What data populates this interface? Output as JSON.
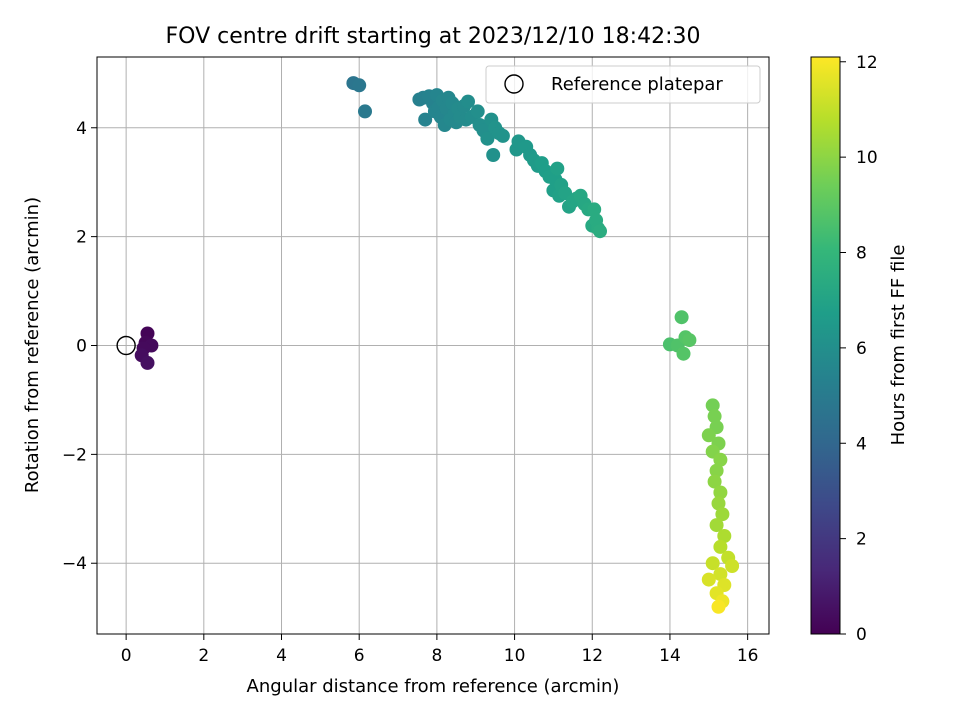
{
  "chart_data": {
    "type": "scatter",
    "title": "FOV centre drift starting at 2023/12/10 18:42:30",
    "xlabel": "Angular distance from reference (arcmin)",
    "ylabel": "Rotation from reference (arcmin)",
    "xlim": [
      -0.75,
      16.55
    ],
    "ylim": [
      -5.3,
      5.3
    ],
    "xticks": [
      0,
      2,
      4,
      6,
      8,
      10,
      12,
      14,
      16
    ],
    "yticks": [
      -4,
      -2,
      0,
      2,
      4
    ],
    "grid": true,
    "legend": {
      "placement": "top-right",
      "entries": [
        "Reference platepar"
      ]
    },
    "reference_point": {
      "x": 0,
      "y": 0,
      "label": "Reference platepar"
    },
    "colorbar": {
      "label": "Hours from first FF file",
      "range": [
        0,
        12.1
      ],
      "ticks": [
        0,
        2,
        4,
        6,
        8,
        10,
        12
      ],
      "colormap": [
        "#440154",
        "#482878",
        "#3e4989",
        "#31688e",
        "#26828e",
        "#1f9e89",
        "#35b779",
        "#6ece58",
        "#b5de2b",
        "#fde725"
      ]
    },
    "series": [
      {
        "points": [
          {
            "x": 0.55,
            "y": 0.22,
            "h": 0.1
          },
          {
            "x": 0.5,
            "y": 0.05,
            "h": 0.2
          },
          {
            "x": 0.65,
            "y": 0.0,
            "h": 0.3
          },
          {
            "x": 0.45,
            "y": -0.05,
            "h": 0.3
          },
          {
            "x": 0.4,
            "y": -0.18,
            "h": 0.4
          },
          {
            "x": 0.55,
            "y": -0.32,
            "h": 0.5
          },
          {
            "x": 5.85,
            "y": 4.82,
            "h": 4.7
          },
          {
            "x": 6.0,
            "y": 4.78,
            "h": 4.8
          },
          {
            "x": 6.15,
            "y": 4.3,
            "h": 4.9
          },
          {
            "x": 7.55,
            "y": 4.52,
            "h": 5.3
          },
          {
            "x": 7.65,
            "y": 4.55,
            "h": 5.3
          },
          {
            "x": 7.7,
            "y": 4.15,
            "h": 5.4
          },
          {
            "x": 7.8,
            "y": 4.58,
            "h": 5.4
          },
          {
            "x": 7.9,
            "y": 4.45,
            "h": 5.4
          },
          {
            "x": 7.95,
            "y": 4.3,
            "h": 5.5
          },
          {
            "x": 8.0,
            "y": 4.6,
            "h": 5.5
          },
          {
            "x": 8.05,
            "y": 4.38,
            "h": 5.5
          },
          {
            "x": 8.1,
            "y": 4.2,
            "h": 5.5
          },
          {
            "x": 8.15,
            "y": 4.5,
            "h": 5.6
          },
          {
            "x": 8.2,
            "y": 4.05,
            "h": 5.6
          },
          {
            "x": 8.25,
            "y": 4.35,
            "h": 5.6
          },
          {
            "x": 8.3,
            "y": 4.55,
            "h": 5.6
          },
          {
            "x": 8.35,
            "y": 4.15,
            "h": 5.7
          },
          {
            "x": 8.4,
            "y": 4.45,
            "h": 5.7
          },
          {
            "x": 8.45,
            "y": 4.25,
            "h": 5.7
          },
          {
            "x": 8.5,
            "y": 4.1,
            "h": 5.7
          },
          {
            "x": 8.55,
            "y": 4.35,
            "h": 5.8
          },
          {
            "x": 8.6,
            "y": 4.2,
            "h": 5.8
          },
          {
            "x": 8.7,
            "y": 4.4,
            "h": 5.8
          },
          {
            "x": 8.75,
            "y": 4.15,
            "h": 5.8
          },
          {
            "x": 8.8,
            "y": 4.48,
            "h": 5.9
          },
          {
            "x": 8.9,
            "y": 4.2,
            "h": 5.9
          },
          {
            "x": 9.05,
            "y": 4.3,
            "h": 6.0
          },
          {
            "x": 9.1,
            "y": 4.05,
            "h": 6.0
          },
          {
            "x": 9.2,
            "y": 3.95,
            "h": 6.0
          },
          {
            "x": 9.3,
            "y": 3.8,
            "h": 6.1
          },
          {
            "x": 9.4,
            "y": 4.15,
            "h": 6.1
          },
          {
            "x": 9.45,
            "y": 3.5,
            "h": 6.1
          },
          {
            "x": 9.5,
            "y": 4.0,
            "h": 6.2
          },
          {
            "x": 9.6,
            "y": 3.9,
            "h": 6.2
          },
          {
            "x": 9.7,
            "y": 3.85,
            "h": 6.2
          },
          {
            "x": 10.05,
            "y": 3.6,
            "h": 6.4
          },
          {
            "x": 10.1,
            "y": 3.75,
            "h": 6.4
          },
          {
            "x": 10.3,
            "y": 3.65,
            "h": 6.5
          },
          {
            "x": 10.4,
            "y": 3.5,
            "h": 6.5
          },
          {
            "x": 10.5,
            "y": 3.4,
            "h": 6.6
          },
          {
            "x": 10.6,
            "y": 3.3,
            "h": 6.6
          },
          {
            "x": 10.7,
            "y": 3.35,
            "h": 6.7
          },
          {
            "x": 10.8,
            "y": 3.2,
            "h": 6.7
          },
          {
            "x": 10.9,
            "y": 3.1,
            "h": 6.8
          },
          {
            "x": 11.0,
            "y": 2.85,
            "h": 6.8
          },
          {
            "x": 11.05,
            "y": 3.05,
            "h": 6.8
          },
          {
            "x": 11.1,
            "y": 3.25,
            "h": 6.9
          },
          {
            "x": 11.15,
            "y": 2.75,
            "h": 6.9
          },
          {
            "x": 11.2,
            "y": 2.95,
            "h": 6.9
          },
          {
            "x": 11.3,
            "y": 2.8,
            "h": 7.0
          },
          {
            "x": 11.4,
            "y": 2.55,
            "h": 7.0
          },
          {
            "x": 11.5,
            "y": 2.65,
            "h": 7.1
          },
          {
            "x": 11.6,
            "y": 2.7,
            "h": 7.1
          },
          {
            "x": 11.7,
            "y": 2.75,
            "h": 7.2
          },
          {
            "x": 11.8,
            "y": 2.6,
            "h": 7.2
          },
          {
            "x": 11.9,
            "y": 2.5,
            "h": 7.3
          },
          {
            "x": 12.0,
            "y": 2.2,
            "h": 7.3
          },
          {
            "x": 12.05,
            "y": 2.5,
            "h": 7.4
          },
          {
            "x": 12.1,
            "y": 2.3,
            "h": 7.4
          },
          {
            "x": 12.15,
            "y": 2.15,
            "h": 7.4
          },
          {
            "x": 12.2,
            "y": 2.1,
            "h": 7.5
          },
          {
            "x": 14.0,
            "y": 0.02,
            "h": 8.6
          },
          {
            "x": 14.2,
            "y": 0.0,
            "h": 8.7
          },
          {
            "x": 14.3,
            "y": 0.52,
            "h": 8.7
          },
          {
            "x": 14.35,
            "y": -0.15,
            "h": 8.8
          },
          {
            "x": 14.4,
            "y": 0.15,
            "h": 8.8
          },
          {
            "x": 14.5,
            "y": 0.1,
            "h": 8.9
          },
          {
            "x": 15.1,
            "y": -1.1,
            "h": 9.5
          },
          {
            "x": 15.15,
            "y": -1.3,
            "h": 9.6
          },
          {
            "x": 15.2,
            "y": -1.5,
            "h": 9.6
          },
          {
            "x": 15.0,
            "y": -1.65,
            "h": 9.7
          },
          {
            "x": 15.25,
            "y": -1.8,
            "h": 9.7
          },
          {
            "x": 15.1,
            "y": -1.95,
            "h": 9.8
          },
          {
            "x": 15.3,
            "y": -2.1,
            "h": 9.9
          },
          {
            "x": 15.2,
            "y": -2.3,
            "h": 9.9
          },
          {
            "x": 15.15,
            "y": -2.5,
            "h": 10.0
          },
          {
            "x": 15.3,
            "y": -2.7,
            "h": 10.1
          },
          {
            "x": 15.25,
            "y": -2.9,
            "h": 10.2
          },
          {
            "x": 15.35,
            "y": -3.1,
            "h": 10.3
          },
          {
            "x": 15.2,
            "y": -3.3,
            "h": 10.4
          },
          {
            "x": 15.4,
            "y": -3.5,
            "h": 10.6
          },
          {
            "x": 15.3,
            "y": -3.7,
            "h": 10.8
          },
          {
            "x": 15.5,
            "y": -3.9,
            "h": 11.0
          },
          {
            "x": 15.1,
            "y": -4.0,
            "h": 11.1
          },
          {
            "x": 15.6,
            "y": -4.05,
            "h": 11.2
          },
          {
            "x": 15.3,
            "y": -4.2,
            "h": 11.3
          },
          {
            "x": 15.0,
            "y": -4.3,
            "h": 11.4
          },
          {
            "x": 15.4,
            "y": -4.4,
            "h": 11.5
          },
          {
            "x": 15.2,
            "y": -4.55,
            "h": 11.6
          },
          {
            "x": 15.35,
            "y": -4.7,
            "h": 11.8
          },
          {
            "x": 15.25,
            "y": -4.8,
            "h": 12.0
          }
        ]
      }
    ]
  }
}
